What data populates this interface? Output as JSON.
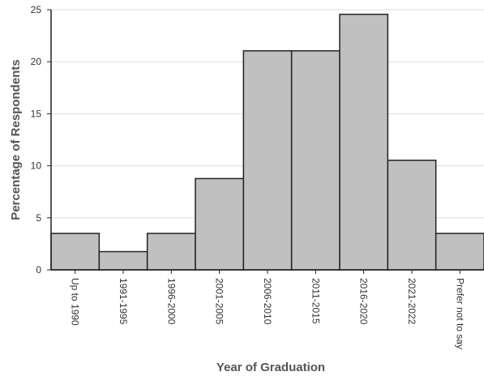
{
  "chart_data": {
    "type": "bar",
    "title": "",
    "xlabel": "Year of Graduation",
    "ylabel": "Percentage of Respondents",
    "categories": [
      "Up to 1990",
      "1991-1995",
      "1996-2000",
      "2001-2005",
      "2006-2010",
      "2011-2015",
      "2016-2020",
      "2021-2022",
      "Prefer not to say"
    ],
    "values": [
      3.5,
      1.75,
      3.5,
      8.77,
      21.05,
      21.05,
      24.56,
      10.53,
      3.5
    ],
    "ylim": [
      0,
      25
    ],
    "yticks": [
      0,
      5,
      10,
      15,
      20,
      25
    ],
    "grid": true,
    "bar_color": "#c0c0c0",
    "bar_edge_color": "#222222"
  }
}
